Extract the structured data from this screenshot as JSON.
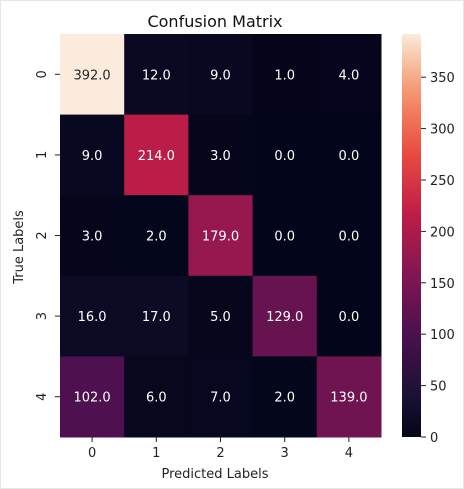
{
  "chart_data": {
    "type": "heatmap",
    "title": "Confusion Matrix",
    "xlabel": "Predicted Labels",
    "ylabel": "True Labels",
    "x_categories": [
      "0",
      "1",
      "2",
      "3",
      "4"
    ],
    "y_categories": [
      "0",
      "1",
      "2",
      "3",
      "4"
    ],
    "values": [
      [
        392,
        12,
        9,
        1,
        4
      ],
      [
        9,
        214,
        3,
        0,
        0
      ],
      [
        3,
        2,
        179,
        0,
        0
      ],
      [
        16,
        17,
        5,
        129,
        0
      ],
      [
        102,
        6,
        7,
        2,
        139
      ]
    ],
    "cell_labels": [
      [
        "392.0",
        "12.0",
        "9.0",
        "1.0",
        "4.0"
      ],
      [
        "9.0",
        "214.0",
        "3.0",
        "0.0",
        "0.0"
      ],
      [
        "3.0",
        "2.0",
        "179.0",
        "0.0",
        "0.0"
      ],
      [
        "16.0",
        "17.0",
        "5.0",
        "129.0",
        "0.0"
      ],
      [
        "102.0",
        "6.0",
        "7.0",
        "2.0",
        "139.0"
      ]
    ],
    "colormap": "rocket",
    "vmin": 0,
    "vmax": 392,
    "colorbar_ticks": [
      0,
      50,
      100,
      150,
      200,
      250,
      300,
      350
    ],
    "colorbar_tick_labels": [
      "0",
      "50",
      "100",
      "150",
      "200",
      "250",
      "300",
      "350"
    ],
    "legend": "colorbar-right",
    "grid": false
  }
}
